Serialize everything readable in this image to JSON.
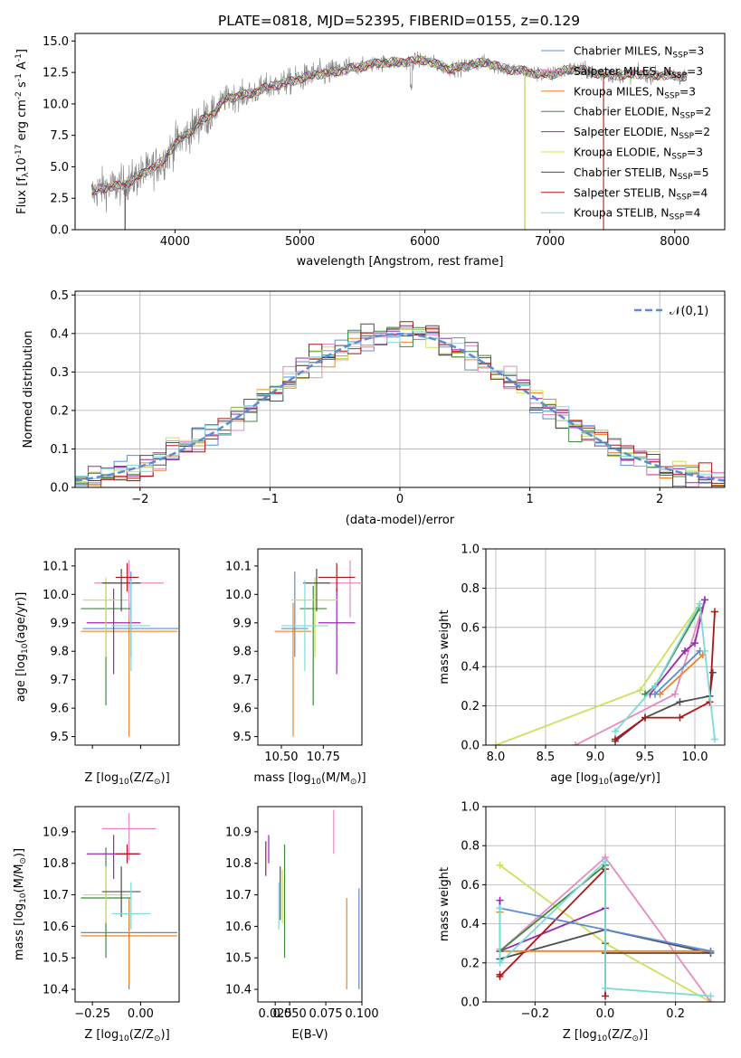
{
  "figure": {
    "suptitle": "PLATE=0818, MJD=52395, FIBERID=0155, z=0.129"
  },
  "chart_data": [
    {
      "id": "spectrum",
      "type": "line",
      "title": "PLATE=0818, MJD=52395, FIBERID=0155, z=0.129",
      "xlabel": "wavelength [Angstrom, rest frame]",
      "ylabel": "Flux [f$_λ$10$^{-17}$ erg cm$^{-2}$ s$^{-1}$ A$^{-1}$]",
      "xlim": [
        3200,
        8400
      ],
      "ylim": [
        0,
        15.6
      ],
      "xticks": [
        4000,
        5000,
        6000,
        7000,
        8000
      ],
      "yticks": [
        0.0,
        2.5,
        5.0,
        7.5,
        10.0,
        12.5,
        15.0
      ],
      "grid": false,
      "legend_position": "right",
      "data_envelope": {
        "x": [
          3330,
          3400,
          3500,
          3600,
          3700,
          3800,
          3900,
          4000,
          4100,
          4200,
          4300,
          4400,
          4500,
          4600,
          4700,
          4800,
          4900,
          5000,
          5100,
          5200,
          5300,
          5400,
          5500,
          5600,
          5700,
          5800,
          5900,
          6000,
          6100,
          6200,
          6300,
          6400,
          6500,
          6600,
          6700,
          6800,
          6900,
          7000,
          7100,
          7200,
          7300,
          7400,
          7500,
          7600,
          7700,
          7800,
          7900,
          8000,
          8100
        ],
        "y": [
          2.8,
          3.3,
          3.4,
          3.6,
          4.2,
          4.8,
          5.4,
          6.8,
          7.6,
          8.6,
          9.2,
          10.4,
          10.6,
          10.8,
          11.2,
          11.5,
          11.7,
          12.0,
          12.3,
          12.4,
          12.6,
          12.8,
          13.0,
          13.2,
          13.3,
          13.3,
          13.4,
          13.5,
          13.1,
          12.8,
          12.9,
          13.2,
          13.3,
          12.9,
          12.7,
          12.6,
          12.4,
          12.3,
          12.6,
          12.8,
          12.6,
          12.4,
          12.3,
          12.3,
          12.4,
          12.3,
          12.3,
          12.2,
          12.2
        ]
      },
      "series": [
        {
          "name": "Chabrier MILES, N$_{SSP}$=3",
          "color": "#5b8bd6",
          "cutoff_x": 3600
        },
        {
          "name": "Salpeter MILES, N$_{SSP}$=3",
          "color": "#e78ac3",
          "cutoff_x": 3600
        },
        {
          "name": "Kroupa MILES, N$_{SSP}$=3",
          "color": "#e8852e",
          "cutoff_x": 7430
        },
        {
          "name": "Chabrier ELODIE, N$_{SSP}$=2",
          "color": "#3b8a3b",
          "cutoff_x": 6800
        },
        {
          "name": "Salpeter ELODIE, N$_{SSP}$=2",
          "color": "#9b27af",
          "cutoff_x": 6800
        },
        {
          "name": "Kroupa ELODIE, N$_{SSP}$=3",
          "color": "#cde05c",
          "cutoff_x": 6800
        },
        {
          "name": "Chabrier STELIB, N$_{SSP}$=5",
          "color": "#4d4d4d",
          "cutoff_x": 3600
        },
        {
          "name": "Salpeter STELIB, N$_{SSP}$=4",
          "color": "#b01515",
          "cutoff_x": 7430
        },
        {
          "name": "Kroupa STELIB, N$_{SSP}$=4",
          "color": "#7ed9db",
          "cutoff_x": 8100
        }
      ]
    },
    {
      "id": "residuals",
      "type": "line",
      "xlabel": "(data-model)/error",
      "ylabel": "Normed distribution",
      "xlim": [
        -2.5,
        2.5
      ],
      "ylim": [
        0,
        0.51
      ],
      "xticks": [
        -2,
        -1,
        0,
        1,
        2
      ],
      "yticks": [
        0.0,
        0.1,
        0.2,
        0.3,
        0.4,
        0.5
      ],
      "grid": true,
      "legend": {
        "label": "$\\mathcal{N}(0,1)$",
        "position": "top-right",
        "style": "dashed",
        "color": "#5b8bd6"
      },
      "bin_width": 0.1
    },
    {
      "id": "age_vs_Z",
      "type": "scatter",
      "xlabel": "Z [log$_{10}$(Z/Z$_\\odot$)]",
      "ylabel": "age  [log$_{10}$(age/yr)]",
      "xlim": [
        -0.34,
        0.2
      ],
      "ylim": [
        9.47,
        10.16
      ],
      "xticks": [
        -0.25,
        0.0
      ],
      "xticklabels": [
        "",
        ""
      ],
      "yticks": [
        9.5,
        9.6,
        9.7,
        9.8,
        9.9,
        10.0,
        10.1
      ],
      "points": [
        {
          "color": "#5b8bd6",
          "x": -0.05,
          "y": 9.88,
          "xerr": 0.25,
          "yerr_lo": 0.1,
          "yerr_hi": 0.2
        },
        {
          "color": "#e8852e",
          "x": -0.06,
          "y": 9.87,
          "xerr": 0.25,
          "yerr_lo": 0.37,
          "yerr_hi": 0.1
        },
        {
          "color": "#e78ac3",
          "x": -0.06,
          "y": 10.04,
          "xerr": 0.18,
          "yerr_lo": 0.12,
          "yerr_hi": 0.08
        },
        {
          "color": "#3b8a3b",
          "x": -0.18,
          "y": 9.95,
          "xerr": 0.13,
          "yerr_lo": 0.34,
          "yerr_hi": 0.08
        },
        {
          "color": "#9b27af",
          "x": -0.14,
          "y": 9.9,
          "xerr": 0.14,
          "yerr_lo": 0.18,
          "yerr_hi": 0.12
        },
        {
          "color": "#cde05c",
          "x": -0.18,
          "y": 9.98,
          "xerr": 0.12,
          "yerr_lo": 0.2,
          "yerr_hi": 0.08
        },
        {
          "color": "#4d4d4d",
          "x": -0.1,
          "y": 10.04,
          "xerr": 0.1,
          "yerr_lo": 0.1,
          "yerr_hi": 0.05
        },
        {
          "color": "#b01515",
          "x": -0.07,
          "y": 10.06,
          "xerr": 0.06,
          "yerr_lo": 0.05,
          "yerr_hi": 0.05
        },
        {
          "color": "#7ed9db",
          "x": -0.05,
          "y": 9.89,
          "xerr": 0.1,
          "yerr_lo": 0.16,
          "yerr_hi": 0.16
        }
      ]
    },
    {
      "id": "age_vs_mass",
      "type": "scatter",
      "xlabel": "mass [log$_{10}$(M/M$_\\odot$)]",
      "ylabel": "",
      "xlim": [
        10.36,
        10.98
      ],
      "ylim": [
        9.47,
        10.16
      ],
      "xticks": [
        10.5,
        10.75
      ],
      "xticklabels": [
        "10.50",
        "10.75"
      ],
      "yticks": [
        9.5,
        9.6,
        9.7,
        9.8,
        9.9,
        10.0,
        10.1
      ]
    },
    {
      "id": "massweight_vs_age",
      "type": "line",
      "xlabel": "age  [log$_{10}$(age/yr)]",
      "ylabel": "mass weight",
      "xlim": [
        7.9,
        10.3
      ],
      "ylim": [
        0,
        1
      ],
      "xticks": [
        8.0,
        8.5,
        9.0,
        9.5,
        10.0
      ],
      "yticks": [
        0.0,
        0.2,
        0.4,
        0.6,
        0.8,
        1.0
      ],
      "grid": true,
      "series": [
        {
          "color": "#cde05c",
          "x": [
            8.0,
            9.45,
            10.05
          ],
          "y": [
            0.0,
            0.28,
            0.72
          ]
        },
        {
          "color": "#e78ac3",
          "x": [
            8.8,
            9.8,
            10.1
          ],
          "y": [
            0.0,
            0.26,
            0.74
          ]
        },
        {
          "color": "#3b8a3b",
          "x": [
            9.5,
            9.6,
            10.05
          ],
          "y": [
            0.26,
            0.3,
            0.7
          ]
        },
        {
          "color": "#9b27af",
          "x": [
            9.55,
            9.9,
            10.0,
            10.1
          ],
          "y": [
            0.26,
            0.48,
            0.52,
            0.74
          ]
        },
        {
          "color": "#4d4d4d",
          "x": [
            9.2,
            9.5,
            9.85,
            10.15,
            10.18
          ],
          "y": [
            0.02,
            0.14,
            0.22,
            0.25,
            0.37
          ]
        },
        {
          "color": "#b01515",
          "x": [
            9.2,
            9.5,
            9.85,
            10.15,
            10.2
          ],
          "y": [
            0.03,
            0.14,
            0.14,
            0.22,
            0.68
          ]
        },
        {
          "color": "#e8852e",
          "x": [
            9.65,
            10.08
          ],
          "y": [
            0.26,
            0.46
          ]
        },
        {
          "color": "#5b8bd6",
          "x": [
            9.6,
            10.05
          ],
          "y": [
            0.26,
            0.48
          ]
        },
        {
          "color": "#7ed9db",
          "x": [
            9.2,
            9.6,
            10.05,
            10.1,
            10.2
          ],
          "y": [
            0.07,
            0.3,
            0.72,
            0.48,
            0.03
          ]
        }
      ]
    },
    {
      "id": "mass_vs_Z",
      "type": "scatter",
      "xlabel": "Z [log$_{10}$(Z/Z$_\\odot$)]",
      "ylabel": "mass [log$_{10}$(M/M$_\\odot$)]",
      "xlim": [
        -0.34,
        0.2
      ],
      "ylim": [
        10.36,
        10.98
      ],
      "xticks": [
        -0.25,
        0.0
      ],
      "xticklabels": [
        "−0.25",
        "0.00"
      ],
      "yticks": [
        10.4,
        10.5,
        10.6,
        10.7,
        10.8,
        10.9
      ],
      "points": [
        {
          "color": "#5b8bd6",
          "x": -0.06,
          "y": 10.58,
          "xerr": 0.25,
          "yerr_lo": 0.18,
          "yerr_hi": 0.1
        },
        {
          "color": "#e8852e",
          "x": -0.06,
          "y": 10.57,
          "xerr": 0.25,
          "yerr_lo": 0.16,
          "yerr_hi": 0.12
        },
        {
          "color": "#e78ac3",
          "x": -0.06,
          "y": 10.91,
          "xerr": 0.14,
          "yerr_lo": 0.1,
          "yerr_hi": 0.05
        },
        {
          "color": "#3b8a3b",
          "x": -0.18,
          "y": 10.69,
          "xerr": 0.13,
          "yerr_lo": 0.19,
          "yerr_hi": 0.16
        },
        {
          "color": "#9b27af",
          "x": -0.14,
          "y": 10.83,
          "xerr": 0.14,
          "yerr_lo": 0.08,
          "yerr_hi": 0.06
        },
        {
          "color": "#cde05c",
          "x": -0.18,
          "y": 10.7,
          "xerr": 0.12,
          "yerr_lo": 0.09,
          "yerr_hi": 0.09
        },
        {
          "color": "#4d4d4d",
          "x": -0.1,
          "y": 10.71,
          "xerr": 0.1,
          "yerr_lo": 0.08,
          "yerr_hi": 0.08
        },
        {
          "color": "#b01515",
          "x": -0.07,
          "y": 10.83,
          "xerr": 0.06,
          "yerr_lo": 0.03,
          "yerr_hi": 0.03
        },
        {
          "color": "#7ed9db",
          "x": -0.05,
          "y": 10.64,
          "xerr": 0.1,
          "yerr_lo": 0.05,
          "yerr_hi": 0.1
        }
      ]
    },
    {
      "id": "mass_vs_EBV",
      "type": "scatter",
      "xlabel": "E(B-V)",
      "ylabel": "",
      "xlim": [
        0.028,
        0.1
      ],
      "ylim": [
        10.36,
        10.98
      ],
      "xticks": [
        0.05,
        0.075,
        0.1
      ],
      "xticklabels": [
        "0.050",
        "0.075",
        "0.100"
      ],
      "xtick_extra": {
        "value": 0.04,
        "label": "0.025"
      },
      "yticks": [
        10.4,
        10.5,
        10.6,
        10.7,
        10.8,
        10.9
      ],
      "points": [
        {
          "color": "#5b8bd6",
          "x": 0.098,
          "y": 10.57,
          "yerr_lo": 0.17,
          "yerr_hi": 0.15
        },
        {
          "color": "#e8852e",
          "x": 0.0895,
          "y": 10.55,
          "yerr_lo": 0.15,
          "yerr_hi": 0.14
        },
        {
          "color": "#e78ac3",
          "x": 0.0805,
          "y": 10.9,
          "yerr_lo": 0.07,
          "yerr_hi": 0.07
        },
        {
          "color": "#3b8a3b",
          "x": 0.0465,
          "y": 10.69,
          "yerr_lo": 0.19,
          "yerr_hi": 0.17
        },
        {
          "color": "#9b27af",
          "x": 0.0355,
          "y": 10.84,
          "yerr_lo": 0.04,
          "yerr_hi": 0.05
        },
        {
          "color": "#cde05c",
          "x": 0.045,
          "y": 10.7,
          "yerr_lo": 0.09,
          "yerr_hi": 0.08
        },
        {
          "color": "#4d4d4d",
          "x": 0.0435,
          "y": 10.71,
          "yerr_lo": 0.09,
          "yerr_hi": 0.08
        },
        {
          "color": "#b01515",
          "x": 0.0335,
          "y": 10.82,
          "yerr_lo": 0.06,
          "yerr_hi": 0.05
        },
        {
          "color": "#7ed9db",
          "x": 0.0425,
          "y": 10.66,
          "yerr_lo": 0.07,
          "yerr_hi": 0.08
        }
      ]
    },
    {
      "id": "massweight_vs_Z",
      "type": "line",
      "xlabel": "Z [log$_{10}$(Z/Z$_\\odot$)]",
      "ylabel": "mass weight",
      "xlim": [
        -0.34,
        0.34
      ],
      "ylim": [
        0,
        1
      ],
      "xticks": [
        -0.2,
        0.0,
        0.2
      ],
      "xticklabels": [
        "−0.2",
        "0.0",
        "0.2"
      ],
      "yticks": [
        0.0,
        0.2,
        0.4,
        0.6,
        0.8,
        1.0
      ],
      "grid": true,
      "series": [
        {
          "color": "#cde05c",
          "x": [
            -0.3,
            0.0,
            0.3
          ],
          "y": [
            0.7,
            0.3,
            0.0
          ]
        },
        {
          "color": "#e78ac3",
          "x": [
            -0.3,
            -0.3,
            0.0,
            0.3
          ],
          "y": [
            0.27,
            0.26,
            0.74,
            0.0
          ]
        },
        {
          "color": "#9b27af",
          "x": [
            -0.3,
            -0.3,
            0.0
          ],
          "y": [
            0.52,
            0.26,
            0.48
          ]
        },
        {
          "color": "#4d4d4d",
          "x": [
            -0.3,
            0.0,
            0.3,
            0.0
          ],
          "y": [
            0.22,
            0.37,
            0.25,
            0.25
          ]
        },
        {
          "color": "#b01515",
          "x": [
            -0.3,
            -0.3,
            0.0,
            0.0
          ],
          "y": [
            0.14,
            0.13,
            0.68,
            0.03
          ]
        },
        {
          "color": "#e8852e",
          "x": [
            -0.3,
            -0.3,
            0.3
          ],
          "y": [
            0.46,
            0.26,
            0.26
          ]
        },
        {
          "color": "#5b8bd6",
          "x": [
            -0.3,
            0.3
          ],
          "y": [
            0.48,
            0.26
          ]
        },
        {
          "color": "#3b8a3b",
          "x": [
            -0.3,
            0.0,
            0.0
          ],
          "y": [
            0.26,
            0.7,
            0.3
          ]
        },
        {
          "color": "#7ed9db",
          "x": [
            -0.3,
            -0.3,
            0.0,
            0.0,
            0.3
          ],
          "y": [
            0.48,
            0.2,
            0.72,
            0.07,
            0.03
          ]
        }
      ]
    }
  ]
}
